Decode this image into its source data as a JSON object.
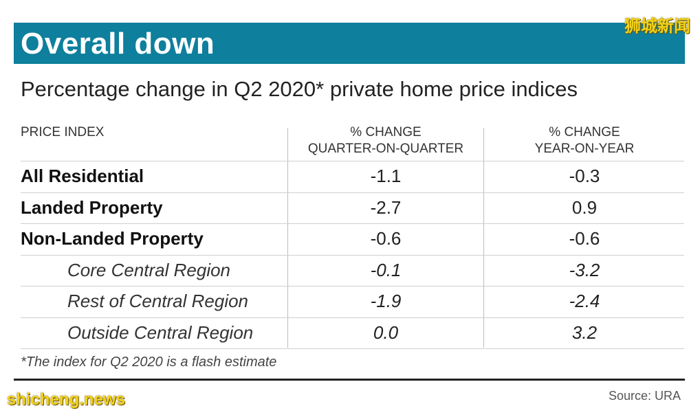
{
  "watermark_top": "狮城新闻",
  "watermark_bottom": "shicheng.news",
  "colors": {
    "banner": "#0e7f9c",
    "watermark": "#f2d21a"
  },
  "chart_data": {
    "type": "table",
    "title": "Overall down",
    "subtitle": "Percentage change in Q2 2020* private home price indices",
    "columns": [
      "PRICE INDEX",
      "% CHANGE\nQUARTER-ON-QUARTER",
      "% CHANGE\nYEAR-ON-YEAR"
    ],
    "column_headers": {
      "index": "PRICE INDEX",
      "qoq_line1": "% CHANGE",
      "qoq_line2": "QUARTER-ON-QUARTER",
      "yoy_line1": "% CHANGE",
      "yoy_line2": "YEAR-ON-YEAR"
    },
    "rows": [
      {
        "label": "All Residential",
        "qoq": "-1.1",
        "yoy": "-0.3",
        "style": "bold"
      },
      {
        "label": "Landed Property",
        "qoq": "-2.7",
        "yoy": "0.9",
        "style": "bold"
      },
      {
        "label": "Non-Landed Property",
        "qoq": "-0.6",
        "yoy": "-0.6",
        "style": "bold"
      },
      {
        "label": "Core Central Region",
        "qoq": "-0.1",
        "yoy": "-3.2",
        "style": "sub"
      },
      {
        "label": "Rest of Central Region",
        "qoq": "-1.9",
        "yoy": "-2.4",
        "style": "sub"
      },
      {
        "label": "Outside Central Region",
        "qoq": "0.0",
        "yoy": "3.2",
        "style": "sub"
      }
    ],
    "footnote": "*The index for Q2 2020 is a flash estimate",
    "source": "Source: URA"
  }
}
